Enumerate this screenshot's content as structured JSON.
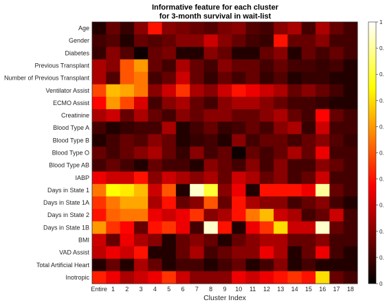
{
  "chart_data": {
    "type": "heatmap",
    "title": "Informative feature for each cluster",
    "subtitle": "for 3-month survival in wait-list",
    "xlabel": "Cluster Index",
    "ylabel": "",
    "colormap": "hot",
    "value_range": [
      0,
      1
    ],
    "columns": [
      "Entire",
      "1",
      "2",
      "3",
      "4",
      "5",
      "6",
      "7",
      "8",
      "9",
      "10",
      "11",
      "12",
      "13",
      "14",
      "15",
      "16",
      "17",
      "18"
    ],
    "rows": [
      "Age",
      "Gender",
      "Diabetes",
      "Previous Transplant",
      "Number of Previous Transplant",
      "Ventilator Assist",
      "ECMO Assist",
      "Creatinine",
      "Blood Type A",
      "Blood Type B",
      "Blood Type O",
      "Blood Type AB",
      "IABP",
      "Days in State 1",
      "Days in State 1A",
      "Days in State 2",
      "Days in State 1B",
      "BMI",
      "VAD Assist",
      "Total Artificial Heart",
      "Inotropic"
    ],
    "colorbar_ticks": [
      "0",
      "0.",
      "0.",
      "0.",
      "0.",
      "0.",
      "0.",
      "0.",
      "0.",
      "0.",
      "1"
    ],
    "values": [
      [
        0.05,
        0.15,
        0.08,
        0.2,
        0.4,
        0.2,
        0.18,
        0.15,
        0.12,
        0.18,
        0.2,
        0.12,
        0.1,
        0.2,
        0.25,
        0.1,
        0.25,
        0.15,
        0.1
      ],
      [
        0.1,
        0.12,
        0.05,
        0.15,
        0.12,
        0.15,
        0.2,
        0.2,
        0.3,
        0.2,
        0.15,
        0.1,
        0.08,
        0.4,
        0.15,
        0.15,
        0.2,
        0.1,
        0.1
      ],
      [
        0.08,
        0.2,
        0.12,
        0.02,
        0.15,
        0.18,
        0.05,
        0.05,
        0.2,
        0.15,
        0.05,
        0.05,
        0.15,
        0.2,
        0.05,
        0.15,
        0.1,
        0.15,
        0.1
      ],
      [
        0.25,
        0.2,
        0.5,
        0.6,
        0.15,
        0.1,
        0.25,
        0.15,
        0.1,
        0.2,
        0.15,
        0.15,
        0.1,
        0.15,
        0.1,
        0.1,
        0.08,
        0.1,
        0.05
      ],
      [
        0.25,
        0.12,
        0.5,
        0.55,
        0.1,
        0.15,
        0.3,
        0.15,
        0.08,
        0.15,
        0.1,
        0.15,
        0.08,
        0.12,
        0.05,
        0.08,
        0.08,
        0.05,
        0.05
      ],
      [
        0.48,
        0.65,
        0.62,
        0.55,
        0.2,
        0.3,
        0.45,
        0.25,
        0.2,
        0.3,
        0.4,
        0.35,
        0.3,
        0.25,
        0.15,
        0.2,
        0.15,
        0.1,
        0.05
      ],
      [
        0.38,
        0.6,
        0.48,
        0.32,
        0.1,
        0.2,
        0.25,
        0.15,
        0.1,
        0.2,
        0.25,
        0.25,
        0.2,
        0.15,
        0.1,
        0.1,
        0.08,
        0.05,
        0.05
      ],
      [
        0.25,
        0.3,
        0.15,
        0.25,
        0.15,
        0.1,
        0.2,
        0.15,
        0.2,
        0.2,
        0.15,
        0.15,
        0.2,
        0.25,
        0.15,
        0.1,
        0.38,
        0.15,
        0.1
      ],
      [
        0.1,
        0.05,
        0.08,
        0.1,
        0.1,
        0.25,
        0.05,
        0.1,
        0.15,
        0.08,
        0.1,
        0.15,
        0.1,
        0.2,
        0.25,
        0.08,
        0.3,
        0.1,
        0.1
      ],
      [
        0.05,
        0.1,
        0.15,
        0.12,
        0.2,
        0.15,
        0.05,
        0.08,
        0.1,
        0.05,
        0.2,
        0.1,
        0.15,
        0.15,
        0.1,
        0.15,
        0.2,
        0.12,
        0.08
      ],
      [
        0.15,
        0.1,
        0.15,
        0.2,
        0.25,
        0.15,
        0.08,
        0.2,
        0.1,
        0.15,
        0.02,
        0.15,
        0.1,
        0.15,
        0.25,
        0.15,
        0.35,
        0.1,
        0.1
      ],
      [
        0.1,
        0.15,
        0.1,
        0.05,
        0.15,
        0.1,
        0.1,
        0.05,
        0.2,
        0.15,
        0.1,
        0.2,
        0.1,
        0.2,
        0.1,
        0.1,
        0.2,
        0.15,
        0.1
      ],
      [
        0.35,
        0.3,
        0.3,
        0.4,
        0.2,
        0.3,
        0.25,
        0.2,
        0.25,
        0.15,
        0.3,
        0.25,
        0.15,
        0.2,
        0.1,
        0.15,
        0.3,
        0.1,
        0.1
      ],
      [
        0.55,
        0.75,
        0.72,
        0.65,
        0.3,
        0.5,
        0.05,
        0.95,
        0.8,
        0.2,
        0.35,
        0.05,
        0.4,
        0.4,
        0.4,
        0.35,
        0.9,
        0.15,
        0.1
      ],
      [
        0.45,
        0.55,
        0.62,
        0.62,
        0.25,
        0.4,
        0.15,
        0.2,
        0.5,
        0.15,
        0.4,
        0.25,
        0.2,
        0.2,
        0.1,
        0.15,
        0.2,
        0.1,
        0.05
      ],
      [
        0.4,
        0.52,
        0.55,
        0.55,
        0.35,
        0.3,
        0.35,
        0.45,
        0.2,
        0.25,
        0.4,
        0.55,
        0.65,
        0.3,
        0.25,
        0.1,
        0.15,
        0.3,
        0.1
      ],
      [
        0.6,
        0.45,
        0.38,
        0.15,
        0.4,
        0.45,
        0.35,
        0.1,
        0.95,
        0.4,
        0.05,
        0.35,
        0.45,
        0.7,
        0.3,
        0.3,
        0.95,
        0.15,
        0.1
      ],
      [
        0.3,
        0.15,
        0.35,
        0.25,
        0.2,
        0.05,
        0.15,
        0.2,
        0.15,
        0.05,
        0.15,
        0.2,
        0.25,
        0.25,
        0.15,
        0.15,
        0.2,
        0.1,
        0.1
      ],
      [
        0.28,
        0.35,
        0.3,
        0.4,
        0.05,
        0.05,
        0.15,
        0.25,
        0.1,
        0.15,
        0.2,
        0.2,
        0.35,
        0.25,
        0.05,
        0.15,
        0.35,
        0.1,
        0.05
      ],
      [
        0.05,
        0.15,
        0.05,
        0.25,
        0.15,
        0.05,
        0.1,
        0.1,
        0.05,
        0.1,
        0.15,
        0.05,
        0.1,
        0.2,
        0.05,
        0.1,
        0.05,
        0.05,
        0.05
      ],
      [
        0.42,
        0.35,
        0.25,
        0.3,
        0.35,
        0.45,
        0.3,
        0.2,
        0.2,
        0.2,
        0.35,
        0.3,
        0.35,
        0.4,
        0.45,
        0.4,
        0.7,
        0.15,
        0.1
      ]
    ]
  }
}
